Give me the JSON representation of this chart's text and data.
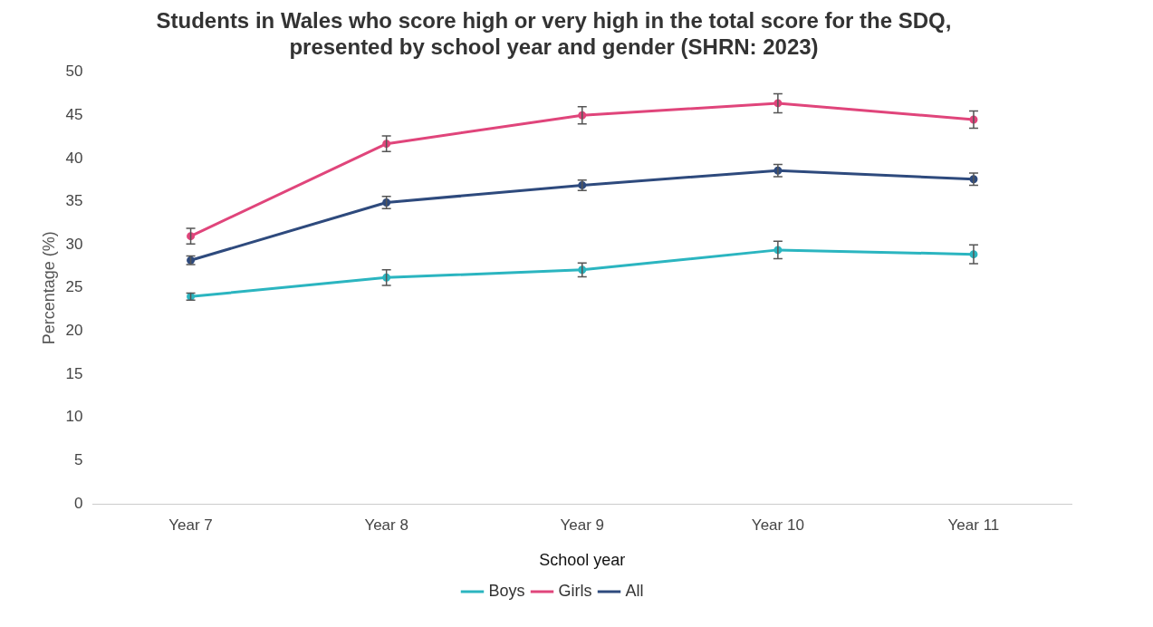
{
  "chart_data": {
    "type": "line",
    "title": "Students in Wales who score high or very high in the total score for the SDQ, presented by school year and gender (SHRN: 2023)",
    "xlabel": "School year",
    "ylabel": "Percentage (%)",
    "categories": [
      "Year 7",
      "Year 8",
      "Year 9",
      "Year 10",
      "Year 11"
    ],
    "series": [
      {
        "name": "Boys",
        "color": "#2bb5c0",
        "values": [
          24.0,
          26.2,
          27.1,
          29.4,
          28.9
        ],
        "errors": [
          0.4,
          0.9,
          0.8,
          1.0,
          1.1
        ]
      },
      {
        "name": "Girls",
        "color": "#e0457b",
        "values": [
          31.0,
          41.7,
          45.0,
          46.4,
          44.5
        ],
        "errors": [
          0.9,
          0.9,
          1.0,
          1.1,
          1.0
        ]
      },
      {
        "name": "All",
        "color": "#2e4a7d",
        "values": [
          28.2,
          34.9,
          36.9,
          38.6,
          37.6
        ],
        "errors": [
          0.5,
          0.7,
          0.6,
          0.7,
          0.7
        ]
      }
    ],
    "ylim": [
      0,
      50
    ],
    "yticks": [
      0,
      5,
      10,
      15,
      20,
      25,
      30,
      35,
      40,
      45,
      50
    ],
    "grid": false,
    "legend": "bottom",
    "marker": "circle",
    "line_style": "solid"
  }
}
